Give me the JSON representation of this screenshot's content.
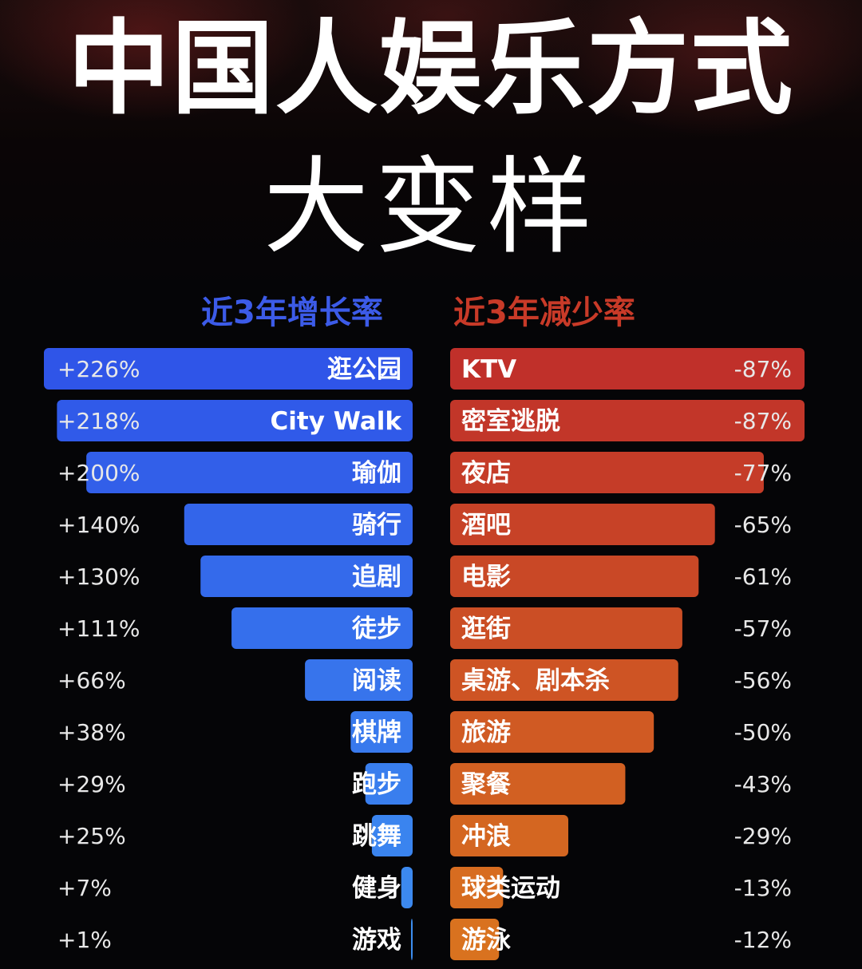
{
  "title": "中国人娱乐方式",
  "subtitle": "大变样",
  "chart_data": [
    {
      "type": "bar",
      "title": "近3年增长率",
      "color": "#3056e6",
      "categories": [
        "逛公园",
        "City Walk",
        "瑜伽",
        "骑行",
        "追剧",
        "徒步",
        "阅读",
        "棋牌",
        "跑步",
        "跳舞",
        "健身",
        "游戏"
      ],
      "values": [
        226,
        218,
        200,
        140,
        130,
        111,
        66,
        38,
        29,
        25,
        7,
        1
      ],
      "value_labels": [
        "+226%",
        "+218%",
        "+200%",
        "+140%",
        "+130%",
        "+111%",
        "+66%",
        "+38%",
        "+29%",
        "+25%",
        "+7%",
        "+1%"
      ]
    },
    {
      "type": "bar",
      "title": "近3年减少率",
      "color": "#c0392b",
      "categories": [
        "KTV",
        "密室逃脱",
        "夜店",
        "酒吧",
        "电影",
        "逛街",
        "桌游、剧本杀",
        "旅游",
        "聚餐",
        "冲浪",
        "球类运动",
        "游泳"
      ],
      "values": [
        -87,
        -87,
        -77,
        -65,
        -61,
        -57,
        -56,
        -50,
        -43,
        -29,
        -13,
        -12
      ],
      "value_labels": [
        "-87%",
        "-87%",
        "-77%",
        "-65%",
        "-61%",
        "-57%",
        "-56%",
        "-50%",
        "-43%",
        "-29%",
        "-13%",
        "-12%"
      ]
    }
  ]
}
